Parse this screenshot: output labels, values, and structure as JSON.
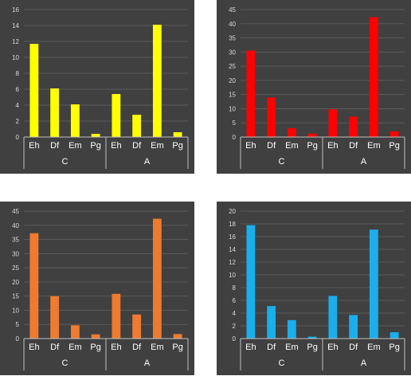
{
  "chart_data": [
    {
      "type": "bar",
      "color": "#FFFF00",
      "groups": [
        {
          "label": "C",
          "categories": [
            "Eh",
            "Df",
            "Em",
            "Pg"
          ],
          "values": [
            11.7,
            6.1,
            4.1,
            0.4
          ]
        },
        {
          "label": "A",
          "categories": [
            "Eh",
            "Df",
            "Em",
            "Pg"
          ],
          "values": [
            5.4,
            2.8,
            14.1,
            0.6
          ]
        }
      ],
      "ylim": [
        0,
        16
      ],
      "yticks": [
        "0",
        "2",
        "4",
        "6",
        "8",
        "10",
        "12",
        "14",
        "16"
      ],
      "grid": true
    },
    {
      "type": "bar",
      "color": "#FF0000",
      "groups": [
        {
          "label": "C",
          "categories": [
            "Eh",
            "Df",
            "Em",
            "Pg"
          ],
          "values": [
            30.5,
            14.0,
            3.1,
            1.2
          ]
        },
        {
          "label": "A",
          "categories": [
            "Eh",
            "Df",
            "Em",
            "Pg"
          ],
          "values": [
            9.8,
            7.2,
            42.3,
            2.0
          ]
        }
      ],
      "ylim": [
        0,
        45
      ],
      "yticks": [
        "0",
        "5",
        "10",
        "15",
        "20",
        "25",
        "30",
        "35",
        "40",
        "45"
      ],
      "grid": true
    },
    {
      "type": "bar",
      "color": "#EE7B30",
      "groups": [
        {
          "label": "C",
          "categories": [
            "Eh",
            "Df",
            "Em",
            "Pg"
          ],
          "values": [
            37.2,
            15.0,
            4.7,
            1.5
          ]
        },
        {
          "label": "A",
          "categories": [
            "Eh",
            "Df",
            "Em",
            "Pg"
          ],
          "values": [
            15.8,
            8.5,
            42.3,
            1.6
          ]
        }
      ],
      "ylim": [
        0,
        45
      ],
      "yticks": [
        "0",
        "5",
        "10",
        "15",
        "20",
        "25",
        "30",
        "35",
        "40",
        "45"
      ],
      "grid": true
    },
    {
      "type": "bar",
      "color": "#1AAEEA",
      "groups": [
        {
          "label": "C",
          "categories": [
            "Eh",
            "Df",
            "Em",
            "Pg"
          ],
          "values": [
            17.8,
            5.1,
            2.9,
            0.3
          ]
        },
        {
          "label": "A",
          "categories": [
            "Eh",
            "Df",
            "Em",
            "Pg"
          ],
          "values": [
            6.7,
            3.7,
            17.1,
            1.0
          ]
        }
      ],
      "ylim": [
        0,
        20
      ],
      "yticks": [
        "0",
        "2",
        "4",
        "6",
        "8",
        "10",
        "12",
        "14",
        "16",
        "18",
        "20"
      ],
      "grid": true
    }
  ]
}
